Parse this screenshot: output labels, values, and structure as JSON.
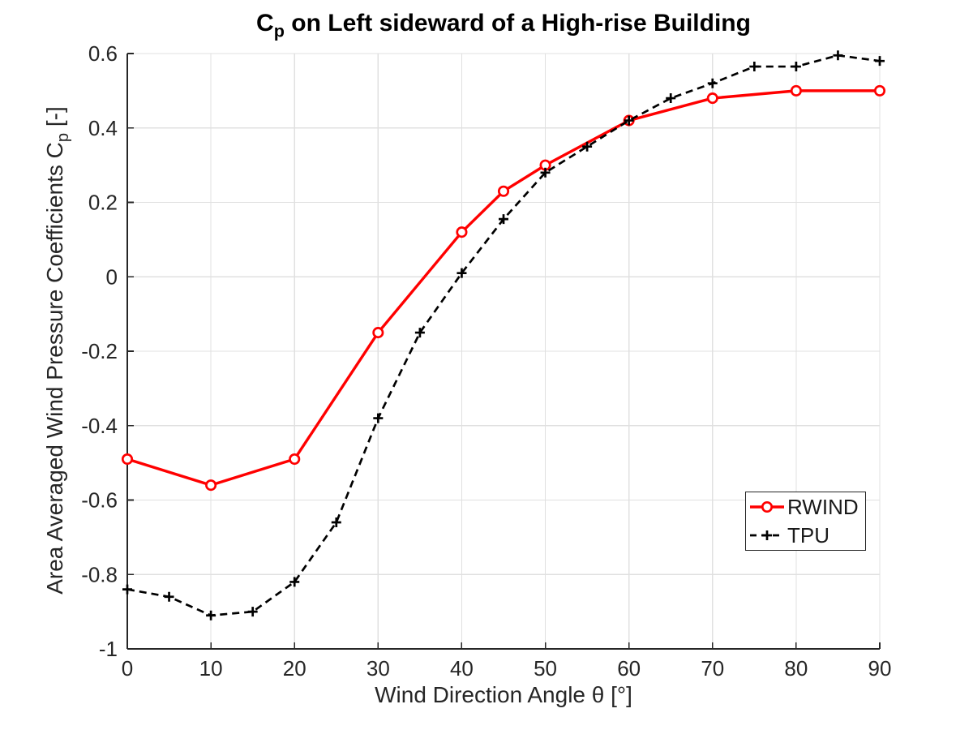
{
  "figure": {
    "background": "#ffffff",
    "axis_color": "#262626",
    "grid_color": "#e0e0e0",
    "title": {
      "prefix": "C",
      "subscript": "p",
      "rest": " on Left sideward of a High-rise Building"
    },
    "ylabel": {
      "prefix": "Area Averaged Wind Pressure Coefficients C",
      "subscript": "p",
      "suffix": " [-]"
    },
    "xlabel": "Wind Direction Angle θ [°]"
  },
  "chart_data": {
    "type": "line",
    "title": "C_p on Left sideward of a High-rise Building",
    "xlabel": "Wind Direction Angle θ [°]",
    "ylabel": "Area Averaged Wind Pressure Coefficients C_p [-]",
    "xlim": [
      0,
      90
    ],
    "ylim": [
      -1,
      0.6
    ],
    "xticks": [
      0,
      10,
      20,
      30,
      40,
      50,
      60,
      70,
      80,
      90
    ],
    "yticks": [
      -1,
      -0.8,
      -0.6,
      -0.4,
      -0.2,
      0,
      0.2,
      0.4,
      0.6
    ],
    "grid": true,
    "legend_position": "right-middle",
    "series": [
      {
        "name": "RWIND",
        "color": "#ff0000",
        "line_style": "solid",
        "marker": "circle",
        "x": [
          0,
          10,
          20,
          30,
          40,
          45,
          50,
          60,
          70,
          80,
          90
        ],
        "y": [
          -0.49,
          -0.56,
          -0.49,
          -0.15,
          0.12,
          0.23,
          0.3,
          0.42,
          0.48,
          0.5,
          0.5
        ]
      },
      {
        "name": "TPU",
        "color": "#000000",
        "line_style": "dashed",
        "marker": "plus",
        "x": [
          0,
          5,
          10,
          15,
          20,
          25,
          30,
          35,
          40,
          45,
          50,
          55,
          60,
          65,
          70,
          75,
          80,
          85,
          90
        ],
        "y": [
          -0.84,
          -0.86,
          -0.91,
          -0.9,
          -0.82,
          -0.66,
          -0.38,
          -0.15,
          0.01,
          0.155,
          0.28,
          0.35,
          0.42,
          0.48,
          0.52,
          0.565,
          0.565,
          0.595,
          0.58
        ]
      }
    ]
  },
  "legend": {
    "items": [
      {
        "label": "RWIND"
      },
      {
        "label": "TPU"
      }
    ]
  }
}
